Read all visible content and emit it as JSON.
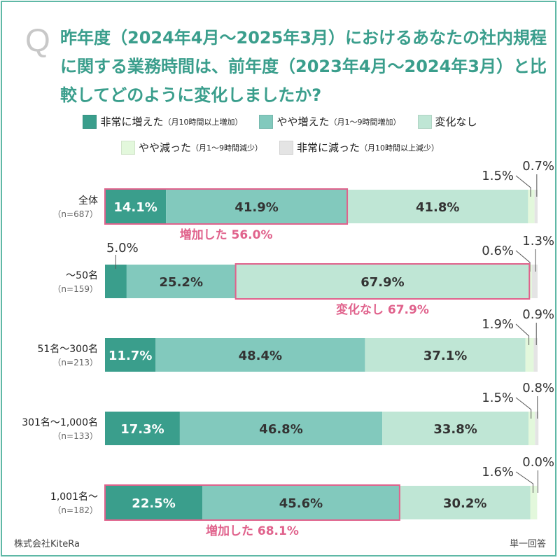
{
  "question_mark": "Q",
  "title": "昨年度（2024年4月〜2025年3月）におけるあなたの社内規程に関する業務時間は、前年度（2023年4月〜2024年3月）と比較してどのように変化しましたか?",
  "footer_left": "株式会社KiteRa",
  "footer_right": "単一回答",
  "chart_data": {
    "type": "bar",
    "orientation": "horizontal-stacked-100",
    "series": [
      {
        "name": "非常に増えた",
        "note": "（月10時間以上増加）",
        "color": "#3a9e8c",
        "values": [
          14.1,
          5.0,
          11.7,
          17.3,
          22.5
        ]
      },
      {
        "name": "やや増えた",
        "note": "（月1〜9時間増加）",
        "color": "#82c9bd",
        "values": [
          41.9,
          25.2,
          48.4,
          46.8,
          45.6
        ]
      },
      {
        "name": "変化なし",
        "note": "",
        "color": "#bfe6d5",
        "values": [
          41.8,
          67.9,
          37.1,
          33.8,
          30.2
        ]
      },
      {
        "name": "やや減った",
        "note": "（月1〜9時間減少）",
        "color": "#e3f8dc",
        "values": [
          1.5,
          0.6,
          1.9,
          1.5,
          1.6
        ]
      },
      {
        "name": "非常に減った",
        "note": "（月10時間以上減少）",
        "color": "#e4e4e4",
        "values": [
          0.7,
          1.3,
          0.9,
          0.8,
          0.0
        ]
      }
    ],
    "categories": [
      {
        "label": "全体",
        "n": "（n=687）"
      },
      {
        "label": "〜50名",
        "n": "（n=159）"
      },
      {
        "label": "51名〜300名",
        "n": "（n=213）"
      },
      {
        "label": "301名〜1,000名",
        "n": "（n=133）"
      },
      {
        "label": "1,001名〜",
        "n": "（n=182）"
      }
    ],
    "highlights": [
      {
        "row": 0,
        "from": 0,
        "to": 1,
        "label": "増加した 56.0%"
      },
      {
        "row": 1,
        "from": 2,
        "to": 2,
        "label": "変化なし 67.9%"
      },
      {
        "row": 4,
        "from": 0,
        "to": 1,
        "label": "増加した 68.1%"
      }
    ],
    "highlight_color": "#e0628c",
    "xlim": [
      0,
      100
    ]
  }
}
